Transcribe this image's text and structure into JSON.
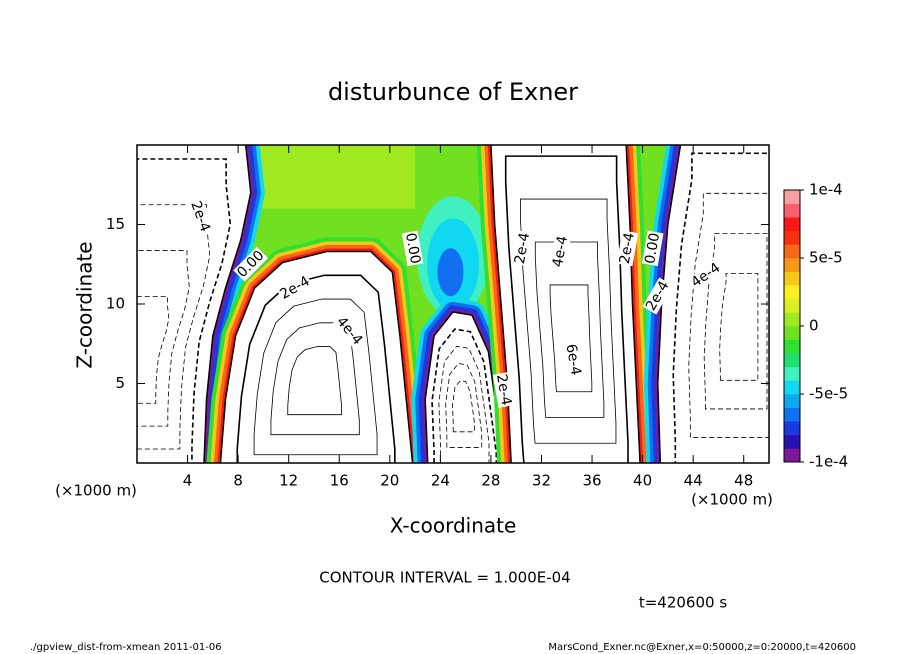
{
  "chart_data": {
    "type": "contour",
    "title": "disturbunce of Exner",
    "x_label": "X-coordinate",
    "y_label": "Z-coordinate",
    "x_unit": "(×1000 m)",
    "y_unit": "(×1000 m)",
    "xlim": [
      0,
      50
    ],
    "ylim": [
      0,
      20
    ],
    "xticks": [
      4,
      8,
      12,
      16,
      20,
      24,
      28,
      32,
      36,
      40,
      44,
      48
    ],
    "yticks": [
      5,
      10,
      15
    ],
    "colorbar": {
      "lim": [
        -0.0001,
        0.0001
      ],
      "ticks": [
        {
          "value": 0.0001,
          "label": "1e-4"
        },
        {
          "value": 5e-05,
          "label": "5e-5"
        },
        0,
        {
          "value": -5e-05,
          "label": "-5e-5"
        },
        {
          "value": -0.0001,
          "label": "-1e-4"
        }
      ],
      "colors": [
        "#7a1a9a",
        "#2a10b0",
        "#1a3ae0",
        "#1070f0",
        "#10a8f0",
        "#10d8f0",
        "#40f0c0",
        "#20e070",
        "#30e030",
        "#70e020",
        "#a0e820",
        "#d8f020",
        "#f8f020",
        "#f8c818",
        "#f89818",
        "#f86818",
        "#f83010",
        "#f81818",
        "#f86070",
        "#f8a0a0"
      ]
    },
    "contour_labels": [
      "2e-4",
      "0.00",
      "2e-4",
      "4e-4",
      "0.00",
      "2e-4",
      "4e-4",
      "6e-4",
      "2e-4",
      "0.00",
      "2e-4",
      "4e-4",
      "2e-4"
    ],
    "contour_interval": "CONTOUR INTERVAL = 1.000E-04",
    "time_label": "t=420600 s",
    "footer_left": "./gpview_dist-from-xmean  2011-01-06",
    "footer_right": "MarsCond_Exner.nc@Exner,x=0:50000,z=0:20000,t=420600"
  }
}
